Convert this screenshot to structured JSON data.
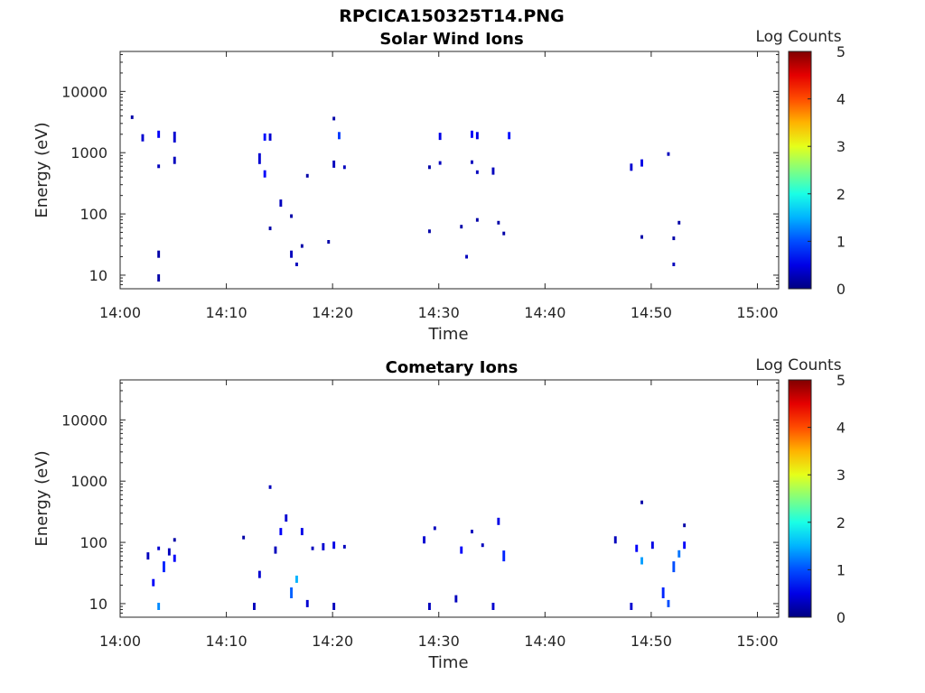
{
  "figure_title": "RPCICA150325T14.PNG",
  "chart_data": [
    {
      "type": "heatmap",
      "title": "Solar Wind Ions",
      "xlabel": "Time",
      "ylabel": "Energy (eV)",
      "xlim": [
        "14:00",
        "15:02"
      ],
      "x_ticks": [
        "14:00",
        "14:10",
        "14:20",
        "14:30",
        "14:40",
        "14:50",
        "15:00"
      ],
      "ylim": [
        6,
        45000
      ],
      "yscale": "log",
      "y_ticks": [
        "10",
        "100",
        "1000",
        "10000"
      ],
      "colorbar": {
        "label": "Log Counts",
        "range": [
          0,
          5
        ],
        "ticks": [
          "0",
          "1",
          "2",
          "3",
          "4",
          "5"
        ],
        "colormap": "jet"
      },
      "points": [
        {
          "t": "14:01",
          "e": 3800,
          "v": 0.2,
          "h": 1
        },
        {
          "t": "14:02",
          "e": 1750,
          "v": 0.4,
          "h": 2
        },
        {
          "t": "14:03.5",
          "e": 2000,
          "v": 0.6,
          "h": 2
        },
        {
          "t": "14:03.5",
          "e": 600,
          "v": 0.3,
          "h": 1
        },
        {
          "t": "14:03.5",
          "e": 22,
          "v": 0.2,
          "h": 2
        },
        {
          "t": "14:03.5",
          "e": 9,
          "v": 0.2,
          "h": 2
        },
        {
          "t": "14:05",
          "e": 1800,
          "v": 0.4,
          "h": 3
        },
        {
          "t": "14:05",
          "e": 750,
          "v": 0.3,
          "h": 2
        },
        {
          "t": "14:13",
          "e": 800,
          "v": 0.4,
          "h": 3
        },
        {
          "t": "14:13.5",
          "e": 1800,
          "v": 0.7,
          "h": 2
        },
        {
          "t": "14:13.5",
          "e": 450,
          "v": 0.6,
          "h": 2
        },
        {
          "t": "14:14",
          "e": 1800,
          "v": 0.4,
          "h": 2
        },
        {
          "t": "14:14",
          "e": 58,
          "v": 0.2,
          "h": 1
        },
        {
          "t": "14:15",
          "e": 150,
          "v": 0.3,
          "h": 2
        },
        {
          "t": "14:16",
          "e": 92,
          "v": 0.2,
          "h": 1
        },
        {
          "t": "14:16",
          "e": 22,
          "v": 0.3,
          "h": 2
        },
        {
          "t": "14:16.5",
          "e": 15,
          "v": 0.3,
          "h": 1
        },
        {
          "t": "14:17",
          "e": 30,
          "v": 0.2,
          "h": 1
        },
        {
          "t": "14:17.5",
          "e": 420,
          "v": 0.2,
          "h": 1
        },
        {
          "t": "14:19.5",
          "e": 35,
          "v": 0.2,
          "h": 1
        },
        {
          "t": "14:20",
          "e": 3600,
          "v": 0.2,
          "h": 1
        },
        {
          "t": "14:20",
          "e": 650,
          "v": 0.3,
          "h": 2
        },
        {
          "t": "14:20.5",
          "e": 1900,
          "v": 0.9,
          "h": 2
        },
        {
          "t": "14:21",
          "e": 580,
          "v": 0.3,
          "h": 1
        },
        {
          "t": "14:29",
          "e": 580,
          "v": 0.2,
          "h": 1
        },
        {
          "t": "14:29",
          "e": 52,
          "v": 0.2,
          "h": 1
        },
        {
          "t": "14:30",
          "e": 1850,
          "v": 0.5,
          "h": 2
        },
        {
          "t": "14:30",
          "e": 680,
          "v": 0.3,
          "h": 1
        },
        {
          "t": "14:32",
          "e": 62,
          "v": 0.2,
          "h": 1
        },
        {
          "t": "14:32.5",
          "e": 20,
          "v": 0.3,
          "h": 1
        },
        {
          "t": "14:33",
          "e": 2000,
          "v": 0.6,
          "h": 2
        },
        {
          "t": "14:33",
          "e": 700,
          "v": 0.3,
          "h": 1
        },
        {
          "t": "14:33.5",
          "e": 1900,
          "v": 0.5,
          "h": 2
        },
        {
          "t": "14:33.5",
          "e": 480,
          "v": 0.3,
          "h": 1
        },
        {
          "t": "14:33.5",
          "e": 80,
          "v": 0.2,
          "h": 1
        },
        {
          "t": "14:35",
          "e": 500,
          "v": 0.3,
          "h": 2
        },
        {
          "t": "14:35.5",
          "e": 72,
          "v": 0.2,
          "h": 1
        },
        {
          "t": "14:36",
          "e": 48,
          "v": 0.2,
          "h": 1
        },
        {
          "t": "14:36.5",
          "e": 1900,
          "v": 0.7,
          "h": 2
        },
        {
          "t": "14:48",
          "e": 580,
          "v": 0.4,
          "h": 2
        },
        {
          "t": "14:49",
          "e": 680,
          "v": 0.5,
          "h": 2
        },
        {
          "t": "14:49",
          "e": 42,
          "v": 0.2,
          "h": 1
        },
        {
          "t": "14:51.5",
          "e": 950,
          "v": 0.3,
          "h": 1
        },
        {
          "t": "14:52",
          "e": 40,
          "v": 0.2,
          "h": 1
        },
        {
          "t": "14:52",
          "e": 15,
          "v": 0.3,
          "h": 1
        },
        {
          "t": "14:52.5",
          "e": 72,
          "v": 0.2,
          "h": 1
        }
      ]
    },
    {
      "type": "heatmap",
      "title": "Cometary Ions",
      "xlabel": "Time",
      "ylabel": "Energy (eV)",
      "xlim": [
        "14:00",
        "15:02"
      ],
      "x_ticks": [
        "14:00",
        "14:10",
        "14:20",
        "14:30",
        "14:40",
        "14:50",
        "15:00"
      ],
      "ylim": [
        6,
        45000
      ],
      "yscale": "log",
      "y_ticks": [
        "10",
        "100",
        "1000",
        "10000"
      ],
      "colorbar": {
        "label": "Log Counts",
        "range": [
          0,
          5
        ],
        "ticks": [
          "0",
          "1",
          "2",
          "3",
          "4",
          "5"
        ],
        "colormap": "jet"
      },
      "points": [
        {
          "t": "14:02.5",
          "e": 60,
          "v": 0.3,
          "h": 2
        },
        {
          "t": "14:03",
          "e": 22,
          "v": 0.6,
          "h": 2
        },
        {
          "t": "14:03.5",
          "e": 9,
          "v": 1.3,
          "h": 2
        },
        {
          "t": "14:03.5",
          "e": 80,
          "v": 0.4,
          "h": 1
        },
        {
          "t": "14:04",
          "e": 40,
          "v": 0.8,
          "h": 3
        },
        {
          "t": "14:04.5",
          "e": 70,
          "v": 0.3,
          "h": 2
        },
        {
          "t": "14:05",
          "e": 55,
          "v": 0.6,
          "h": 2
        },
        {
          "t": "14:05",
          "e": 110,
          "v": 0.2,
          "h": 1
        },
        {
          "t": "14:11.5",
          "e": 120,
          "v": 0.2,
          "h": 1
        },
        {
          "t": "14:12.5",
          "e": 9,
          "v": 0.3,
          "h": 2
        },
        {
          "t": "14:13",
          "e": 30,
          "v": 0.4,
          "h": 2
        },
        {
          "t": "14:14",
          "e": 800,
          "v": 0.3,
          "h": 1
        },
        {
          "t": "14:14.5",
          "e": 75,
          "v": 0.3,
          "h": 2
        },
        {
          "t": "14:15",
          "e": 150,
          "v": 0.6,
          "h": 2
        },
        {
          "t": "14:15.5",
          "e": 250,
          "v": 0.4,
          "h": 2
        },
        {
          "t": "14:16",
          "e": 15,
          "v": 1.1,
          "h": 3
        },
        {
          "t": "14:16.5",
          "e": 25,
          "v": 1.5,
          "h": 2
        },
        {
          "t": "14:17",
          "e": 150,
          "v": 0.5,
          "h": 2
        },
        {
          "t": "14:17.5",
          "e": 10,
          "v": 0.4,
          "h": 2
        },
        {
          "t": "14:18",
          "e": 80,
          "v": 0.3,
          "h": 1
        },
        {
          "t": "14:19",
          "e": 85,
          "v": 0.4,
          "h": 2
        },
        {
          "t": "14:20",
          "e": 90,
          "v": 0.5,
          "h": 2
        },
        {
          "t": "14:20",
          "e": 9,
          "v": 0.3,
          "h": 2
        },
        {
          "t": "14:21",
          "e": 85,
          "v": 0.3,
          "h": 1
        },
        {
          "t": "14:28.5",
          "e": 110,
          "v": 0.4,
          "h": 2
        },
        {
          "t": "14:29",
          "e": 9,
          "v": 0.3,
          "h": 2
        },
        {
          "t": "14:29.5",
          "e": 170,
          "v": 0.3,
          "h": 1
        },
        {
          "t": "14:31.5",
          "e": 12,
          "v": 0.3,
          "h": 2
        },
        {
          "t": "14:32",
          "e": 75,
          "v": 0.6,
          "h": 2
        },
        {
          "t": "14:33",
          "e": 150,
          "v": 0.3,
          "h": 1
        },
        {
          "t": "14:34",
          "e": 90,
          "v": 0.3,
          "h": 1
        },
        {
          "t": "14:35",
          "e": 9,
          "v": 0.4,
          "h": 2
        },
        {
          "t": "14:35.5",
          "e": 220,
          "v": 0.5,
          "h": 2
        },
        {
          "t": "14:36",
          "e": 60,
          "v": 0.8,
          "h": 3
        },
        {
          "t": "14:46.5",
          "e": 110,
          "v": 0.3,
          "h": 2
        },
        {
          "t": "14:48",
          "e": 9,
          "v": 0.4,
          "h": 2
        },
        {
          "t": "14:48.5",
          "e": 80,
          "v": 0.6,
          "h": 2
        },
        {
          "t": "14:49",
          "e": 50,
          "v": 1.4,
          "h": 2
        },
        {
          "t": "14:49",
          "e": 450,
          "v": 0.2,
          "h": 1
        },
        {
          "t": "14:50",
          "e": 90,
          "v": 0.5,
          "h": 2
        },
        {
          "t": "14:51",
          "e": 15,
          "v": 0.8,
          "h": 3
        },
        {
          "t": "14:51.5",
          "e": 10,
          "v": 1.0,
          "h": 2
        },
        {
          "t": "14:52",
          "e": 40,
          "v": 1.0,
          "h": 3
        },
        {
          "t": "14:52.5",
          "e": 65,
          "v": 1.2,
          "h": 2
        },
        {
          "t": "14:53",
          "e": 90,
          "v": 0.6,
          "h": 2
        },
        {
          "t": "14:53",
          "e": 190,
          "v": 0.2,
          "h": 1
        }
      ]
    }
  ]
}
